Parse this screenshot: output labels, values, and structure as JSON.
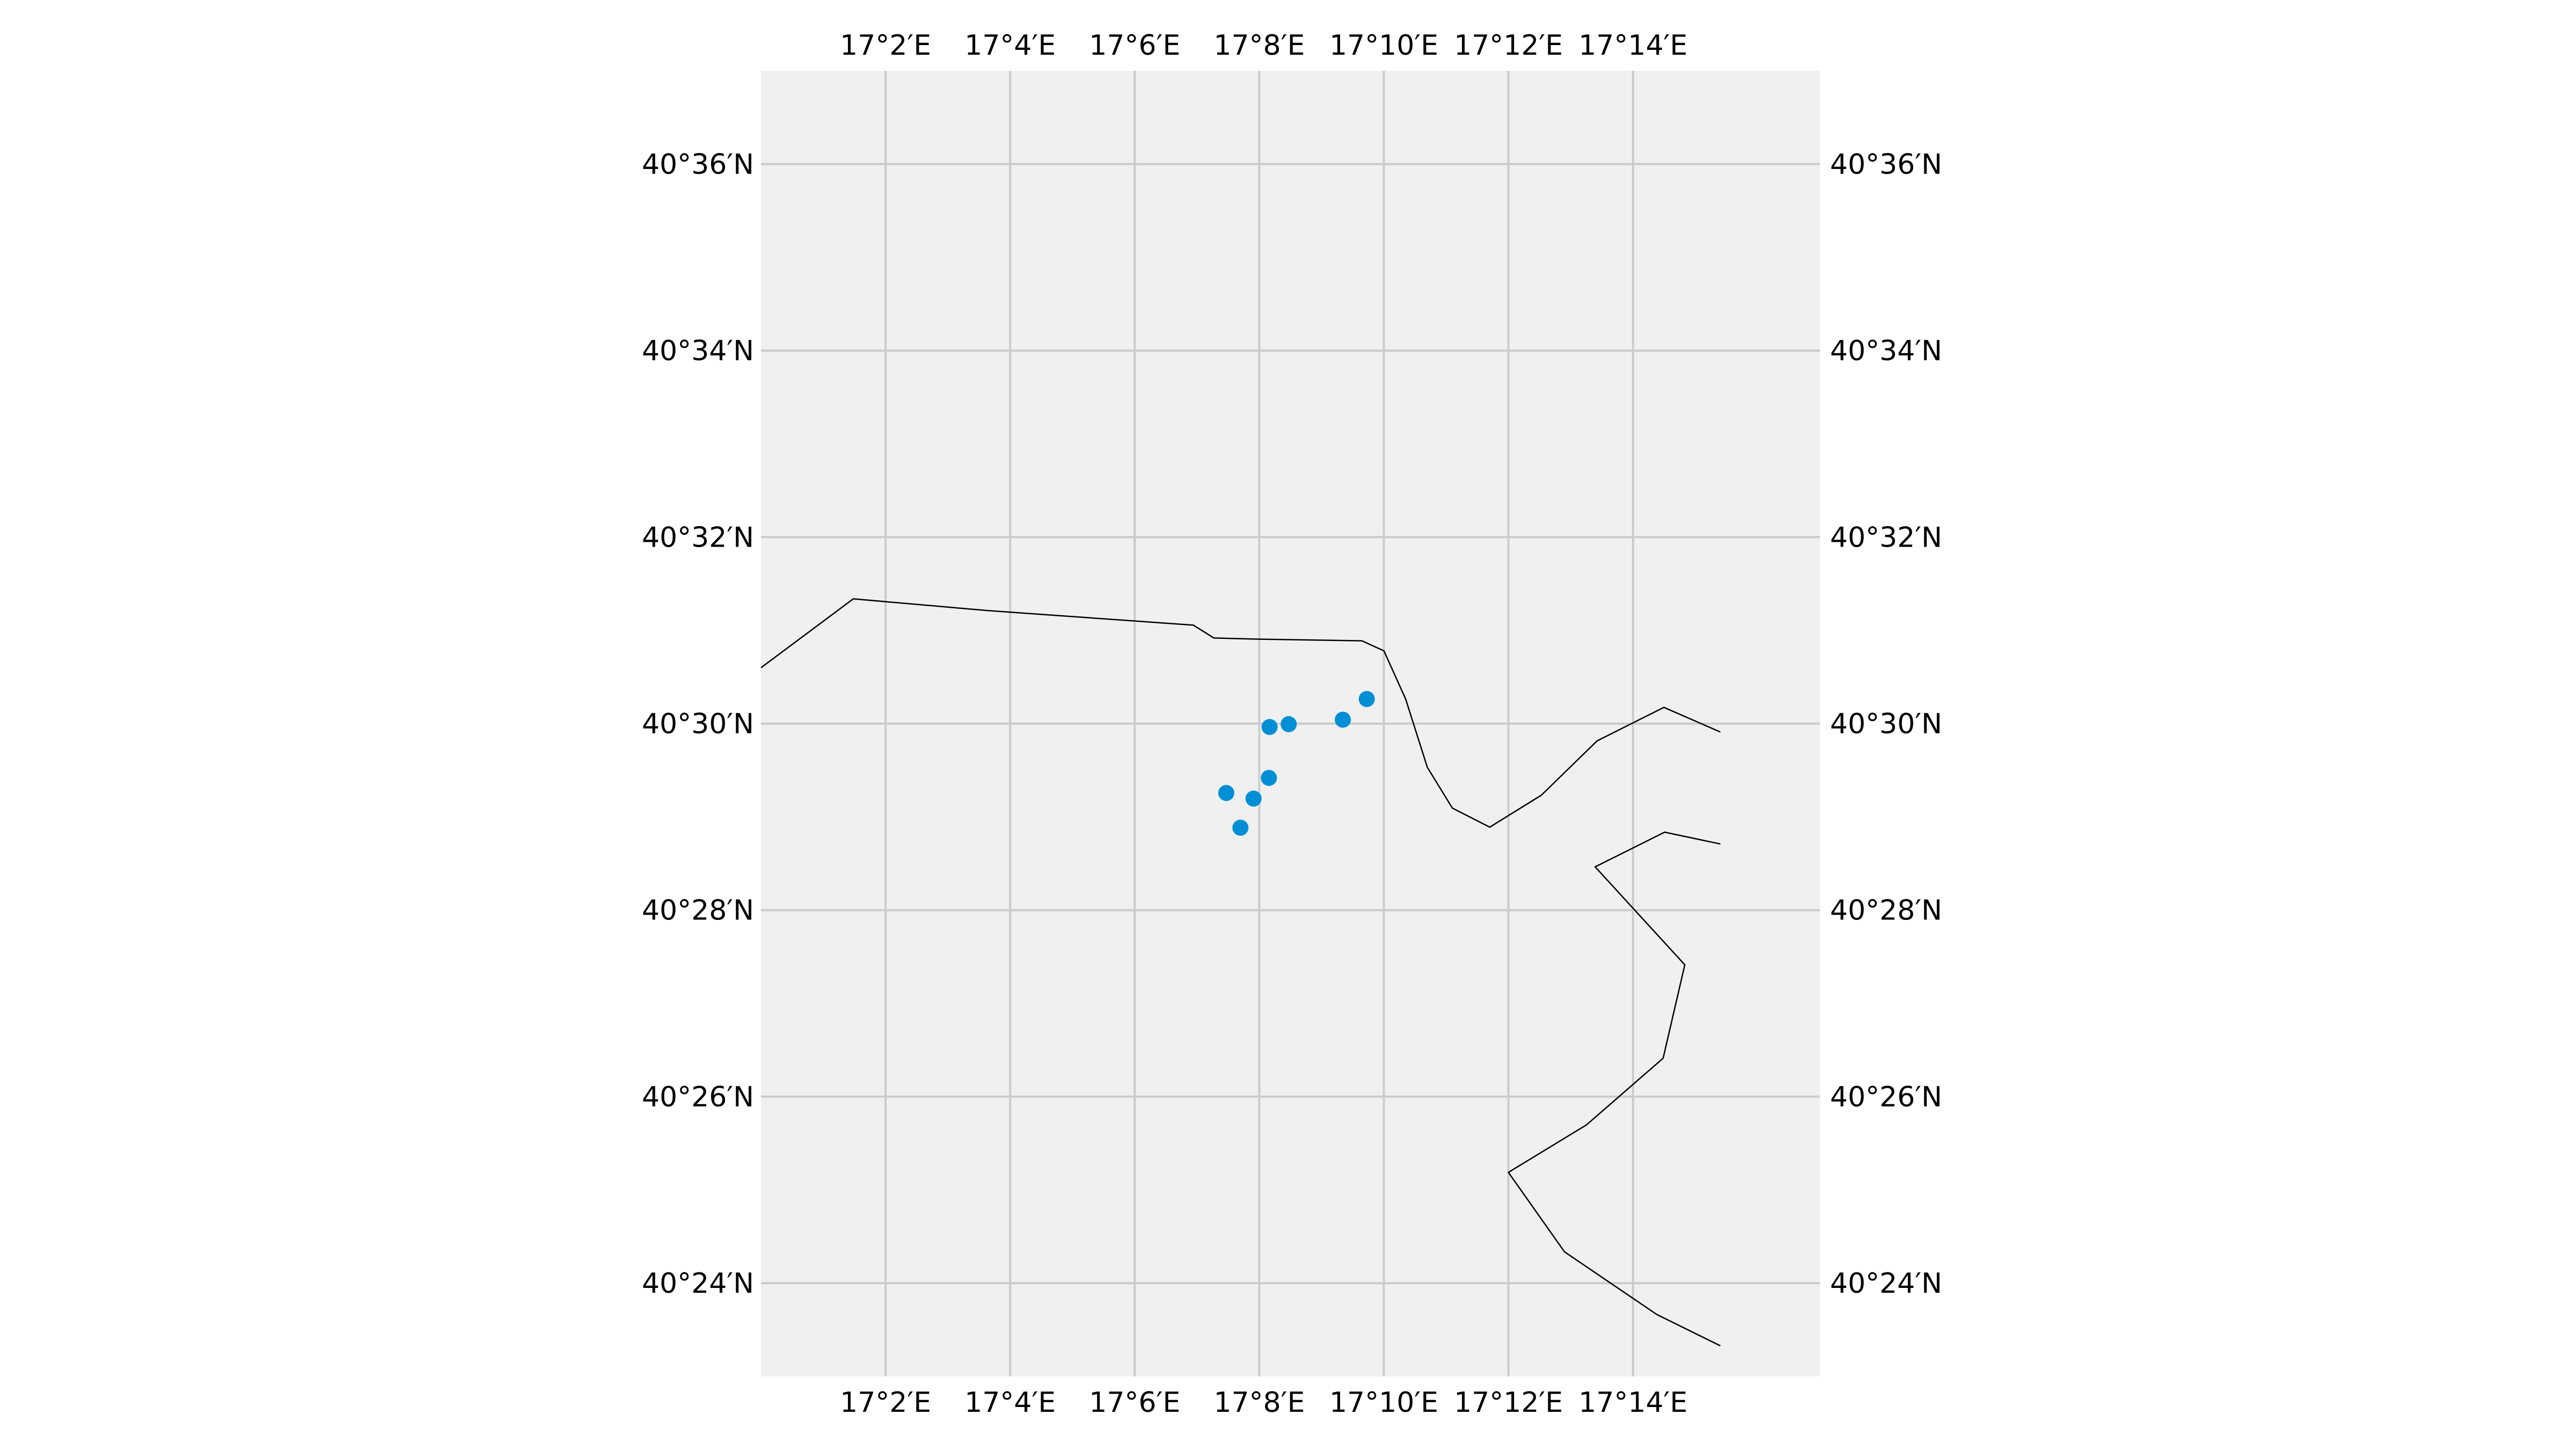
{
  "map": {
    "lon_range": [
      17.0,
      17.2833
    ],
    "lat_range": [
      40.3833,
      40.6167
    ],
    "top_lon_labels": [
      "17°2′E",
      "17°4′E",
      "17°6′E",
      "17°8′E",
      "17°10′E",
      "17°12′E",
      "17°14′E"
    ],
    "bottom_lon_labels": [
      "17°2′E",
      "17°4′E",
      "17°6′E",
      "17°8′E",
      "17°10′E",
      "17°12′E",
      "17°14′E"
    ],
    "left_lat_labels": [
      "40°36′N",
      "40°34′N",
      "40°32′N",
      "40°30′N",
      "40°28′N",
      "40°26′N",
      "40°24′N"
    ],
    "right_lat_labels": [
      "40°36′N",
      "40°34′N",
      "40°32′N",
      "40°30′N",
      "40°28′N",
      "40°26′N",
      "40°24′N"
    ],
    "grid": true,
    "colors": {
      "background": "#f0f0f0",
      "gridline": "#cbcbcb",
      "coastline": "#000000",
      "points": "#008fd5"
    },
    "points": [
      {
        "lon": 17.1621,
        "lat": 40.5044
      },
      {
        "lon": 17.1557,
        "lat": 40.5007
      },
      {
        "lon": 17.1412,
        "lat": 40.4999
      },
      {
        "lon": 17.1361,
        "lat": 40.4994
      },
      {
        "lon": 17.1359,
        "lat": 40.4903
      },
      {
        "lon": 17.1318,
        "lat": 40.4866
      },
      {
        "lon": 17.1245,
        "lat": 40.4876
      },
      {
        "lon": 17.1283,
        "lat": 40.4814
      }
    ],
    "coastlines": [
      {
        "name": "north-coast",
        "coords": [
          [
            17.0,
            40.51
          ],
          [
            17.0247,
            40.5223
          ],
          [
            17.0607,
            40.5202
          ],
          [
            17.1157,
            40.5176
          ],
          [
            17.1212,
            40.5153
          ],
          [
            17.1329,
            40.5151
          ],
          [
            17.1608,
            40.5148
          ],
          [
            17.1667,
            40.513
          ],
          [
            17.1725,
            40.5044
          ],
          [
            17.1783,
            40.4922
          ],
          [
            17.185,
            40.4849
          ],
          [
            17.195,
            40.4815
          ],
          [
            17.2088,
            40.4872
          ],
          [
            17.2237,
            40.4969
          ],
          [
            17.2416,
            40.5029
          ],
          [
            17.2567,
            40.4985
          ]
        ]
      },
      {
        "name": "south-coast",
        "coords": [
          [
            17.2567,
            40.4785
          ],
          [
            17.2418,
            40.4806
          ],
          [
            17.2232,
            40.4744
          ],
          [
            17.2472,
            40.4569
          ],
          [
            17.2414,
            40.4402
          ],
          [
            17.2209,
            40.4283
          ],
          [
            17.2,
            40.4198
          ],
          [
            17.215,
            40.4056
          ],
          [
            17.2397,
            40.3944
          ],
          [
            17.2567,
            40.3888
          ]
        ]
      }
    ]
  }
}
